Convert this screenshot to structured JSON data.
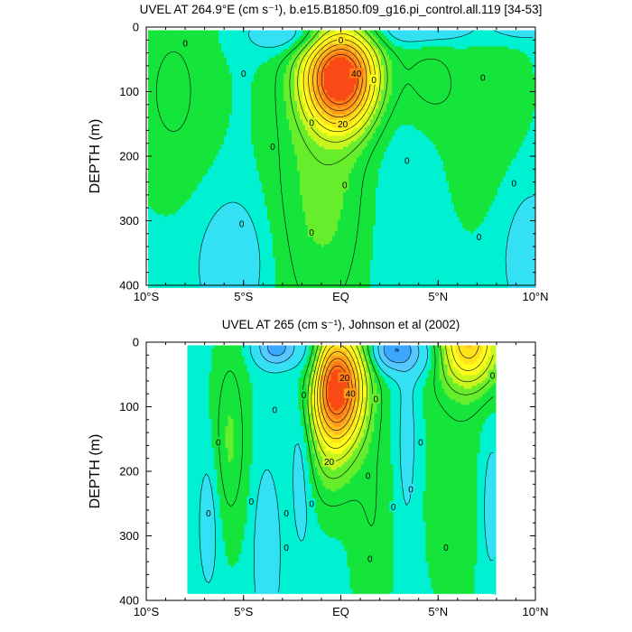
{
  "chart_data": [
    {
      "type": "contour",
      "title": "UVEL AT 264.9°E (cm s⁻¹), b.e15.B1850.f09_g16.pi_control.all.119 [34-53]",
      "ylabel": "DEPTH (m)",
      "xlabel": "",
      "xlim": [
        -10,
        10
      ],
      "ylim": [
        400,
        0
      ],
      "x_ticks": [
        -10,
        -5,
        0,
        5,
        10
      ],
      "x_tick_labels": [
        "10°S",
        "5°S",
        "EQ",
        "5°N",
        "10°N"
      ],
      "y_ticks": [
        0,
        100,
        200,
        300,
        400
      ],
      "y_tick_labels": [
        "0",
        "100",
        "200",
        "300",
        "400"
      ],
      "data_extent": {
        "lon": [
          -9.9,
          9.9
        ],
        "depth": [
          5,
          400
        ]
      },
      "max_core": {
        "lat": 0,
        "depth": 75,
        "value": 90
      },
      "contour_labels": [
        {
          "text": "0",
          "lat": -8.0,
          "depth": 25
        },
        {
          "text": "0",
          "lat": -5.0,
          "depth": 72
        },
        {
          "text": "0",
          "lat": -3.5,
          "depth": 185
        },
        {
          "text": "0",
          "lat": -5.1,
          "depth": 305
        },
        {
          "text": "0",
          "lat": -1.5,
          "depth": 148
        },
        {
          "text": "0",
          "lat": -1.5,
          "depth": 318
        },
        {
          "text": "0",
          "lat": 0.0,
          "depth": 20
        },
        {
          "text": "0",
          "lat": 1.7,
          "depth": 82
        },
        {
          "text": "0",
          "lat": 0.2,
          "depth": 245
        },
        {
          "text": "0",
          "lat": 3.4,
          "depth": 207
        },
        {
          "text": "0",
          "lat": 7.3,
          "depth": 78
        },
        {
          "text": "0",
          "lat": 7.1,
          "depth": 325
        },
        {
          "text": "0",
          "lat": 8.9,
          "depth": 242
        },
        {
          "text": "20",
          "lat": 0.1,
          "depth": 150
        },
        {
          "text": "40",
          "lat": 0.8,
          "depth": 72
        }
      ]
    },
    {
      "type": "contour",
      "title": "UVEL AT 265 (cm s⁻¹), Johnson et al (2002)",
      "ylabel": "DEPTH (m)",
      "xlabel": "",
      "xlim": [
        -10,
        10
      ],
      "ylim": [
        400,
        0
      ],
      "x_ticks": [
        -10,
        -5,
        0,
        5,
        10
      ],
      "x_tick_labels": [
        "10°S",
        "5°S",
        "EQ",
        "5°N",
        "10°N"
      ],
      "y_ticks": [
        0,
        100,
        200,
        300,
        400
      ],
      "y_tick_labels": [
        "0",
        "100",
        "200",
        "300",
        "400"
      ],
      "data_extent": {
        "lon": [
          -7.9,
          7.9
        ],
        "depth": [
          5,
          390
        ]
      },
      "max_core": {
        "lat": -0.1,
        "depth": 65,
        "value": 90
      },
      "contour_labels": [
        {
          "text": "0",
          "lat": -6.8,
          "depth": 265
        },
        {
          "text": "0",
          "lat": -6.3,
          "depth": 155
        },
        {
          "text": "0",
          "lat": -4.6,
          "depth": 247
        },
        {
          "text": "0",
          "lat": -3.4,
          "depth": 105
        },
        {
          "text": "0",
          "lat": -2.8,
          "depth": 265
        },
        {
          "text": "0",
          "lat": -2.8,
          "depth": 318
        },
        {
          "text": "0",
          "lat": -1.9,
          "depth": 82
        },
        {
          "text": "0",
          "lat": -1.5,
          "depth": 250
        },
        {
          "text": "0",
          "lat": 1.4,
          "depth": 207
        },
        {
          "text": "0",
          "lat": 1.5,
          "depth": 336
        },
        {
          "text": "0",
          "lat": 1.8,
          "depth": 88
        },
        {
          "text": "0",
          "lat": 2.7,
          "depth": 255
        },
        {
          "text": "0",
          "lat": 3.6,
          "depth": 228
        },
        {
          "text": "0",
          "lat": 4.1,
          "depth": 155
        },
        {
          "text": "0",
          "lat": 5.4,
          "depth": 318
        },
        {
          "text": "0",
          "lat": 7.8,
          "depth": 52
        },
        {
          "text": "20",
          "lat": 0.2,
          "depth": 55
        },
        {
          "text": "20",
          "lat": -0.6,
          "depth": 185
        },
        {
          "text": "40",
          "lat": 0.5,
          "depth": 80
        }
      ]
    }
  ],
  "colors": {
    "background": "#ffffff",
    "contour_line": "#000000",
    "levels": [
      {
        "min": -40,
        "color": "#1f80ff"
      },
      {
        "min": -30,
        "color": "#3aa8ff"
      },
      {
        "min": -20,
        "color": "#55c8ff"
      },
      {
        "min": -10,
        "color": "#34e0f4"
      },
      {
        "min": 0,
        "color": "#00f0d2"
      },
      {
        "min": 5,
        "color": "#15e43b"
      },
      {
        "min": 15,
        "color": "#66ee2c"
      },
      {
        "min": 25,
        "color": "#c8f51d"
      },
      {
        "min": 35,
        "color": "#ffff19"
      },
      {
        "min": 45,
        "color": "#ffe21a"
      },
      {
        "min": 55,
        "color": "#ffbe1a"
      },
      {
        "min": 65,
        "color": "#ff9c1a"
      },
      {
        "min": 75,
        "color": "#ff7a17"
      },
      {
        "min": 85,
        "color": "#f94a16"
      }
    ]
  }
}
